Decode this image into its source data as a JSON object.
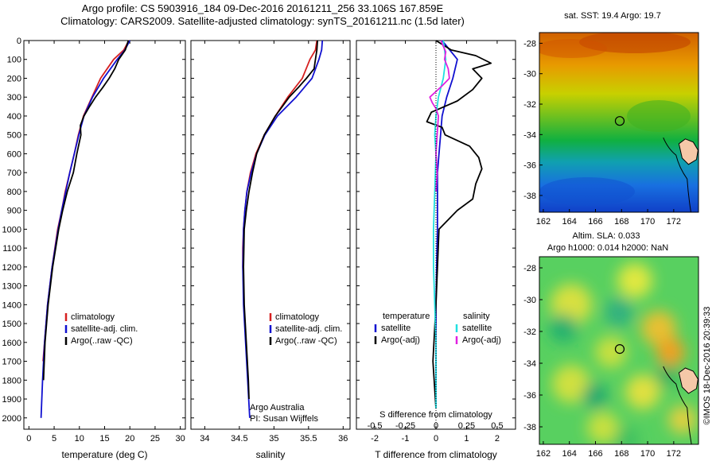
{
  "header": {
    "title_line1": "Argo profile: CS 5903916_184 09-Dec-2016 20161211_256 33.106S 167.859E",
    "title_line2": "Climatology: CARS2009. Satellite-adjusted climatology: synTS_20161211.nc (1.5d later)"
  },
  "colors": {
    "climatology": "#d62020",
    "satellite": "#1010d0",
    "argo": "#000000",
    "salinity_satellite": "#20e0e0",
    "salinity_argo": "#e020e0"
  },
  "chart_data": [
    {
      "type": "line",
      "name": "temperature-profile",
      "xlabel": "temperature (deg C)",
      "ylabel": "",
      "xlim": [
        -1,
        31
      ],
      "ylim": [
        2060,
        0
      ],
      "xticks": [
        0,
        5,
        10,
        15,
        20,
        25,
        30
      ],
      "yticks": [
        0,
        100,
        200,
        300,
        400,
        500,
        600,
        700,
        800,
        900,
        1000,
        1100,
        1200,
        1300,
        1400,
        1500,
        1600,
        1700,
        1800,
        1900,
        2000
      ],
      "legend": [
        "climatology",
        "satellite-adj. clim.",
        "Argo(..raw -QC)"
      ],
      "legend_position": "lower-right",
      "series": [
        {
          "name": "climatology",
          "color_key": "climatology",
          "depth": [
            0,
            50,
            100,
            200,
            300,
            400,
            500,
            600,
            700,
            800,
            900,
            1000,
            1200,
            1400,
            1600,
            1700
          ],
          "values": [
            19.8,
            18.8,
            16.8,
            14.2,
            12.5,
            10.8,
            9.8,
            9.0,
            8.1,
            7.2,
            6.5,
            5.7,
            4.6,
            3.7,
            3.1,
            2.8
          ]
        },
        {
          "name": "satellite-adj. clim.",
          "color_key": "satellite",
          "depth": [
            0,
            50,
            100,
            200,
            300,
            400,
            500,
            600,
            700,
            800,
            900,
            1000,
            1200,
            1400,
            1600,
            1800,
            2000
          ],
          "values": [
            20.0,
            19.0,
            17.5,
            14.8,
            12.6,
            10.9,
            9.9,
            9.0,
            8.1,
            7.3,
            6.5,
            5.8,
            4.6,
            3.7,
            3.1,
            2.7,
            2.4
          ]
        },
        {
          "name": "Argo(..raw -QC)",
          "color_key": "argo",
          "depth": [
            0,
            50,
            100,
            150,
            200,
            250,
            300,
            350,
            400,
            450,
            500,
            600,
            700,
            800,
            900,
            1000,
            1200,
            1400,
            1600,
            1800
          ],
          "values": [
            19.7,
            19.1,
            17.8,
            17.0,
            15.9,
            14.6,
            13.2,
            12.0,
            10.9,
            10.2,
            10.3,
            9.5,
            8.8,
            7.6,
            6.7,
            5.9,
            4.7,
            3.8,
            3.2,
            2.9
          ]
        }
      ]
    },
    {
      "type": "line",
      "name": "salinity-profile",
      "xlabel": "salinity",
      "ylabel": "",
      "xlim": [
        33.8,
        36.1
      ],
      "ylim": [
        2060,
        0
      ],
      "xticks": [
        34,
        34.5,
        35,
        35.5,
        36
      ],
      "legend": [
        "climatology",
        "satellite-adj. clim.",
        "Argo(..raw -QC)"
      ],
      "legend_position": "upper-right",
      "annotations": [
        "Argo Australia",
        "PI: Susan Wijffels"
      ],
      "series": [
        {
          "name": "climatology",
          "color_key": "climatology",
          "depth": [
            0,
            50,
            100,
            200,
            300,
            400,
            500,
            600,
            700,
            800,
            900,
            1000,
            1100,
            1200,
            1300
          ],
          "values": [
            35.62,
            35.6,
            35.52,
            35.41,
            35.2,
            35.02,
            34.86,
            34.74,
            34.66,
            34.61,
            34.58,
            34.56,
            34.55,
            34.55,
            34.56
          ]
        },
        {
          "name": "satellite-adj. clim.",
          "color_key": "satellite",
          "depth": [
            0,
            50,
            100,
            200,
            300,
            400,
            500,
            600,
            700,
            800,
            900,
            1000,
            1200,
            1400,
            1600,
            1800,
            2000
          ],
          "values": [
            35.7,
            35.69,
            35.65,
            35.55,
            35.32,
            35.05,
            34.87,
            34.75,
            34.67,
            34.61,
            34.58,
            34.56,
            34.55,
            34.56,
            34.59,
            34.62,
            34.65
          ]
        },
        {
          "name": "Argo(..raw -QC)",
          "color_key": "argo",
          "depth": [
            0,
            50,
            100,
            150,
            200,
            250,
            300,
            350,
            400,
            500,
            600,
            700,
            800,
            900,
            1000,
            1200,
            1400,
            1600,
            1800,
            1900
          ],
          "values": [
            35.63,
            35.62,
            35.6,
            35.58,
            35.47,
            35.35,
            35.22,
            35.12,
            35.02,
            34.86,
            34.75,
            34.69,
            34.64,
            34.6,
            34.57,
            34.56,
            34.57,
            34.6,
            34.63,
            34.64
          ]
        }
      ]
    },
    {
      "type": "line",
      "name": "difference-profile",
      "xlabel": "T difference from climatology",
      "xlabel_top": "S difference from climatology",
      "ylabel": "",
      "xlim": [
        -2.6,
        2.6
      ],
      "ylim": [
        2060,
        0
      ],
      "xticks": [
        -2,
        -1,
        0,
        1,
        2
      ],
      "xtick_labels": [
        "-2",
        "-1",
        "0",
        "1",
        "2"
      ],
      "sticks": [
        -0.5,
        -0.25,
        0,
        0.25,
        0.5
      ],
      "stick_labels": [
        "-0.5",
        "-0.25",
        "0",
        "0.25",
        "0.5"
      ],
      "legend_title_temperature": "temperature",
      "legend_title_salinity": "salinity",
      "legend": [
        "satellite",
        "Argo(-adj)",
        "satellite",
        "Argo(-adj)"
      ],
      "legend_position": "upper-center",
      "series": [
        {
          "name": "T satellite",
          "color_key": "satellite",
          "depth": [
            0,
            100,
            200,
            300,
            400,
            500,
            600,
            700,
            800,
            900,
            1000,
            1200,
            1400,
            1600,
            1800,
            1950
          ],
          "values": [
            0.2,
            0.7,
            0.55,
            0.35,
            0.2,
            0.15,
            0.1,
            0.05,
            0.05,
            0.05,
            0.05,
            0.02,
            0.0,
            0.0,
            0.0,
            0.0
          ]
        },
        {
          "name": "T Argo(-adj)",
          "color_key": "argo",
          "depth": [
            0,
            50,
            80,
            120,
            150,
            200,
            260,
            320,
            380,
            430,
            460,
            500,
            560,
            620,
            680,
            760,
            840,
            900,
            1000,
            1200,
            1400,
            1700,
            1950
          ],
          "values": [
            0.0,
            0.5,
            1.3,
            1.8,
            1.2,
            1.5,
            1.2,
            0.7,
            -0.15,
            -0.3,
            0.2,
            0.3,
            1.1,
            1.4,
            1.5,
            1.3,
            1.2,
            0.7,
            0.1,
            0.05,
            0.0,
            -0.1,
            0.0
          ]
        },
        {
          "name": "S satellite",
          "color_key": "salinity_satellite",
          "depth": [
            0,
            100,
            200,
            300,
            400,
            500,
            600,
            800,
            1000,
            1200,
            1400,
            1600,
            1800,
            1950
          ],
          "values": [
            0.06,
            0.08,
            0.06,
            0.02,
            0.0,
            -0.01,
            0.0,
            -0.01,
            -0.02,
            -0.02,
            -0.01,
            0.0,
            0.0,
            0.0
          ]
        },
        {
          "name": "S Argo(-adj)",
          "color_key": "salinity_argo",
          "depth": [
            0,
            30,
            60,
            100,
            150,
            200,
            240,
            270,
            300,
            330,
            360,
            400,
            500,
            600,
            700,
            800
          ],
          "values": [
            0.04,
            0.06,
            0.08,
            0.07,
            0.1,
            0.11,
            0.05,
            0.0,
            -0.05,
            -0.03,
            0.0,
            0.02,
            0.01,
            0.0,
            0.01,
            0.0
          ]
        }
      ]
    },
    {
      "type": "heatmap",
      "name": "sst-map",
      "title": "sat. SST: 19.4 Argo: 19.7",
      "xticks": [
        162,
        164,
        166,
        168,
        170,
        172
      ],
      "yticks": [
        -28,
        -30,
        -32,
        -34,
        -36,
        -38
      ],
      "xlim": [
        161.7,
        173.9
      ],
      "ylim": [
        -39.1,
        -27.3
      ],
      "argo_position": [
        167.859,
        -33.106
      ]
    },
    {
      "type": "heatmap",
      "name": "sla-map",
      "title_line1": "Altim. SLA: 0.033",
      "title_line2": "Argo h1000: 0.014 h2000: NaN",
      "xticks": [
        162,
        164,
        166,
        168,
        170,
        172
      ],
      "yticks": [
        -28,
        -30,
        -32,
        -34,
        -36,
        -38
      ],
      "xlim": [
        161.7,
        173.9
      ],
      "ylim": [
        -39.1,
        -27.3
      ],
      "argo_position": [
        167.859,
        -33.106
      ]
    }
  ],
  "footer": {
    "credit": "©IMOS 18-Dec-2016 20:39:33"
  }
}
